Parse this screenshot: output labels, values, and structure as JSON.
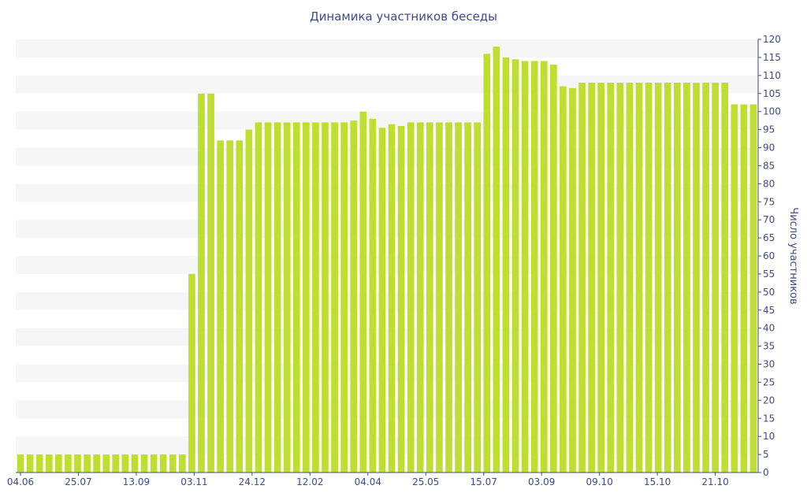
{
  "chart_data": {
    "type": "bar",
    "title": "Динамика участников беседы",
    "xlabel": "",
    "ylabel": "Число участников",
    "ylim": [
      0,
      120
    ],
    "y_ticks": [
      0,
      5,
      10,
      15,
      20,
      25,
      30,
      35,
      40,
      45,
      50,
      55,
      60,
      65,
      70,
      75,
      80,
      85,
      90,
      95,
      100,
      105,
      110,
      115,
      120
    ],
    "y_axis_position": "right",
    "grid": "horizontal bands",
    "x_tick_labels": [
      "04.06",
      "25.07",
      "13.09",
      "03.11",
      "24.12",
      "12.02",
      "04.04",
      "25.05",
      "15.07",
      "03.09",
      "09.10",
      "15.10",
      "21.10"
    ],
    "values": [
      5,
      5,
      5,
      5,
      5,
      5,
      5,
      5,
      5,
      5,
      5,
      5,
      5,
      5,
      5,
      5,
      5,
      5,
      55,
      105,
      105,
      92,
      92,
      92,
      95,
      97,
      97,
      97,
      97,
      97,
      97,
      97,
      97,
      97,
      97,
      97.5,
      100,
      98,
      95.5,
      96.5,
      96,
      97,
      97,
      97,
      97,
      97,
      97,
      97,
      97,
      116,
      118,
      115,
      114.5,
      114,
      114,
      114,
      113,
      107,
      106.5,
      108,
      108,
      108,
      108,
      108,
      108,
      108,
      108,
      108,
      108,
      108,
      108,
      108,
      108,
      108,
      108,
      102,
      102,
      102
    ],
    "bar_color": "#bede30",
    "text_color": "#3b4a8c",
    "band_color": "#f6f6f6"
  }
}
